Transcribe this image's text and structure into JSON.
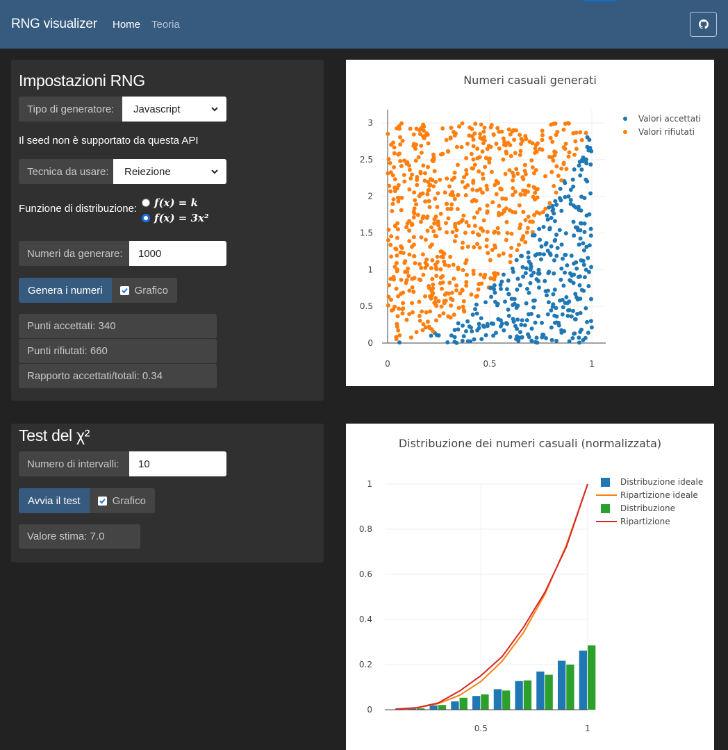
{
  "navbar": {
    "brand": "RNG visualizer",
    "links": [
      "Home",
      "Teoria"
    ],
    "github_icon": "github-icon"
  },
  "settings": {
    "title": "Impostazioni RNG",
    "generator_label": "Tipo di generatore:",
    "generator_value": "Javascript",
    "seed_note": "Il seed non è supportato da questa API",
    "technique_label": "Tecnica da usare:",
    "technique_value": "Reiezione",
    "distribution_label": "Funzione di distribuzione:",
    "distribution_options": [
      "f(x) = k",
      "f(x) = 3x²"
    ],
    "distribution_selected": 1,
    "count_label": "Numeri da generare:",
    "count_value": "1000",
    "generate_button": "Genera i numeri",
    "plot_checkbox_label": "Grafico",
    "plot_checked": true,
    "accepted_text": "Punti accettati: 340",
    "rejected_text": "Punti rifiutati: 660",
    "ratio_text": "Rapporto accettati/totali: 0.34"
  },
  "chi_test": {
    "title": "Test del χ²",
    "intervals_label": "Numero di intervalli:",
    "intervals_value": "10",
    "run_button": "Avvia il test",
    "plot_checkbox_label": "Grafico",
    "plot_checked": true,
    "estimate_text": "Valore stima: 7.0"
  },
  "colors": {
    "navbar": "#375a7f",
    "accepted": "#1f77b4",
    "rejected": "#ff7f0e",
    "distribution": "#2ca02c",
    "cumulative": "#d62728"
  },
  "chart_data": [
    {
      "type": "scatter",
      "title": "Numeri casuali generati",
      "xlabel": "",
      "ylabel": "",
      "xlim": [
        0,
        1
      ],
      "ylim": [
        0,
        3
      ],
      "x_ticks": [
        "0",
        "0.5",
        "1"
      ],
      "y_ticks": [
        "0",
        "0.5",
        "1",
        "1.5",
        "2",
        "2.5",
        "3"
      ],
      "legend_position": "top-right",
      "series": [
        {
          "name": "Valori accettati",
          "color": "#1f77b4",
          "count": 340
        },
        {
          "name": "Valori rifiutati",
          "color": "#ff7f0e",
          "count": 660
        }
      ],
      "boundary": "y = 3x²",
      "grid": true
    },
    {
      "type": "bar",
      "title": "Distribuzione dei numeri casuali (normalizzata)",
      "xlabel": "",
      "ylabel": "",
      "categories": [
        0.1,
        0.2,
        0.3,
        0.4,
        0.5,
        0.6,
        0.7,
        0.8,
        0.9,
        1.0
      ],
      "x_ticks": [
        "0.5",
        "1"
      ],
      "y_ticks": [
        "0",
        "0.2",
        "0.4",
        "0.6",
        "0.8",
        "1"
      ],
      "ylim": [
        0,
        1
      ],
      "legend_position": "top-right",
      "grid": true,
      "series": [
        {
          "name": "Distribuzione ideale",
          "kind": "bar",
          "color": "#1f77b4",
          "values": [
            0.001,
            0.007,
            0.019,
            0.037,
            0.061,
            0.091,
            0.127,
            0.169,
            0.217,
            0.262
          ]
        },
        {
          "name": "Ripartizione ideale",
          "kind": "line",
          "color": "#ff7f0e",
          "values": [
            0.001,
            0.008,
            0.027,
            0.064,
            0.125,
            0.216,
            0.343,
            0.512,
            0.729,
            1.0
          ]
        },
        {
          "name": "Distribuzione",
          "kind": "bar",
          "color": "#2ca02c",
          "values": [
            0.003,
            0.006,
            0.021,
            0.053,
            0.068,
            0.085,
            0.13,
            0.155,
            0.2,
            0.285
          ]
        },
        {
          "name": "Ripartizione",
          "kind": "line",
          "color": "#d62728",
          "values": [
            0.003,
            0.009,
            0.03,
            0.083,
            0.151,
            0.236,
            0.366,
            0.521,
            0.721,
            1.0
          ]
        }
      ]
    }
  ]
}
